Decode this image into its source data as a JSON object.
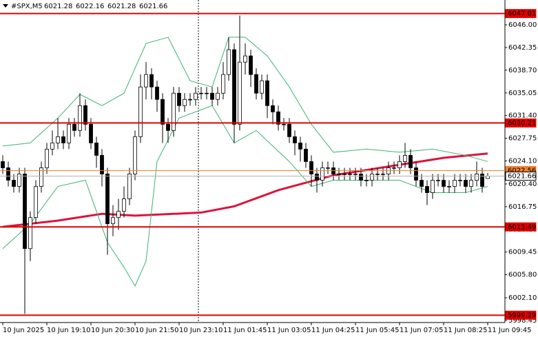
{
  "header": {
    "symbol": "#SPX,M5",
    "values": [
      6021.28,
      6022.16,
      6021.28,
      6021.66
    ]
  },
  "chart_data": {
    "type": "candlestick",
    "open": [
      6024,
      6023,
      6021,
      6020,
      6022,
      6010,
      6015,
      6020,
      6023,
      6026,
      6027,
      6028,
      6027,
      6030,
      6029,
      6033,
      6030,
      6027,
      6025,
      6022,
      6014,
      6015,
      6016,
      6018,
      6022,
      6028,
      6036,
      6038,
      6036,
      6034,
      6030,
      6029,
      6035,
      6033,
      6034,
      6034,
      6035,
      6035,
      6035,
      6034,
      6035,
      6038,
      6042,
      6030,
      6040,
      6041,
      6038,
      6035,
      6037,
      6033,
      6032,
      6030,
      6030,
      6028,
      6027,
      6026,
      6024,
      6022,
      6021,
      6023,
      6023,
      6022,
      6022,
      6022,
      6022,
      6022,
      6021,
      6021,
      6022,
      6022,
      6022,
      6023,
      6023,
      6024,
      6025,
      6023,
      6021,
      6020,
      6019,
      6021,
      6021,
      6020,
      6020,
      6021,
      6021,
      6020,
      6021,
      6022,
      6021.28
    ],
    "high": [
      6025,
      6024,
      6022,
      6023,
      6023,
      6016,
      6021,
      6024,
      6027,
      6029,
      6031,
      6029,
      6031,
      6031,
      6035,
      6034,
      6031,
      6028,
      6026,
      6023,
      6017,
      6018,
      6020,
      6023,
      6029,
      6038,
      6040,
      6039,
      6037,
      6035,
      6031,
      6036,
      6036,
      6035,
      6035,
      6036,
      6036,
      6036,
      6036,
      6036,
      6040,
      6044,
      6043,
      6047.5,
      6043,
      6042,
      6039,
      6038,
      6038,
      6034,
      6033,
      6031,
      6031,
      6029,
      6028,
      6027,
      6025,
      6023,
      6024,
      6024,
      6024,
      6023,
      6023,
      6023,
      6023,
      6023,
      6022,
      6023,
      6023,
      6023,
      6024,
      6024,
      6025,
      6027,
      6026,
      6024,
      6022,
      6021,
      6022,
      6022,
      6022,
      6021,
      6022,
      6022,
      6022,
      6022,
      6024,
      6023,
      6022.16
    ],
    "low": [
      6022,
      6020,
      6019,
      6019,
      5999.5,
      6008,
      6014,
      6019,
      6022,
      6025,
      6026,
      6026,
      6026,
      6028,
      6028,
      6029,
      6026,
      6023,
      6020,
      6009,
      6012,
      6013,
      6015,
      6017,
      6021,
      6027,
      6034,
      6034,
      6032,
      6027,
      6027,
      6028,
      6032,
      6032,
      6033,
      6033,
      6034,
      6034,
      6033,
      6033,
      6034,
      6037,
      6027,
      6029,
      6038,
      6036,
      6034,
      6034,
      6031,
      6030,
      6029,
      6029,
      6027,
      6025,
      6024,
      6023,
      6020,
      6019,
      6020,
      6022,
      6021,
      6021,
      6021,
      6021,
      6021,
      6020,
      6020,
      6020,
      6021,
      6021,
      6021,
      6022,
      6022,
      6023,
      6022,
      6020,
      6019,
      6017,
      6018,
      6020,
      6019,
      6019,
      6019,
      6020,
      6019,
      6019,
      6020,
      6019,
      6021.28
    ],
    "close": [
      6023,
      6021,
      6020,
      6022,
      6010,
      6015,
      6020,
      6023,
      6026,
      6027,
      6028,
      6027,
      6030,
      6029,
      6033,
      6030,
      6027,
      6025,
      6022,
      6014,
      6015,
      6016,
      6018,
      6022,
      6028,
      6036,
      6038,
      6036,
      6034,
      6030,
      6029,
      6035,
      6033,
      6034,
      6034,
      6035,
      6035,
      6035,
      6034,
      6035,
      6038,
      6042,
      6030,
      6040,
      6041,
      6038,
      6035,
      6037,
      6033,
      6032,
      6030,
      6030,
      6028,
      6027,
      6026,
      6024,
      6022,
      6021,
      6023,
      6023,
      6022,
      6022,
      6022,
      6022,
      6022,
      6021,
      6021,
      6022,
      6022,
      6022,
      6023,
      6023,
      6024,
      6025,
      6023,
      6021,
      6020,
      6019,
      6021,
      6021,
      6020,
      6020,
      6021,
      6021,
      6020,
      6021,
      6022,
      6020,
      6021.66
    ],
    "series": [
      {
        "color": "#dc143c",
        "width": 3,
        "x": [
          0,
          10,
          18,
          24,
          36,
          42,
          50,
          60,
          70,
          80,
          88
        ],
        "values": [
          6013.5,
          6014.5,
          6015.6,
          6015.3,
          6015.8,
          6016.8,
          6019.4,
          6021.8,
          6023.2,
          6024.6,
          6025.3
        ]
      },
      {
        "color": "#3cb371",
        "width": 1,
        "x": [
          0,
          5,
          10,
          14,
          18,
          22,
          26,
          30,
          34,
          38,
          41,
          44,
          48,
          52,
          56,
          60,
          66,
          72,
          78,
          84,
          88
        ],
        "values": [
          6026.5,
          6027,
          6031,
          6034.8,
          6033,
          6035,
          6043,
          6044,
          6037,
          6036,
          6044,
          6044,
          6041,
          6036,
          6030,
          6025.5,
          6026,
          6025.5,
          6026,
          6025,
          6024
        ]
      },
      {
        "color": "#3cb371",
        "width": 1,
        "x": [
          0,
          5,
          10,
          15,
          19,
          22,
          24,
          26,
          28,
          32,
          38,
          42,
          46,
          52,
          56,
          60,
          66,
          72,
          78,
          84,
          88
        ],
        "values": [
          6010,
          6014,
          6020,
          6021,
          6011,
          6007,
          6004,
          6008,
          6024,
          6031,
          6033,
          6027,
          6029,
          6024,
          6020,
          6021,
          6021,
          6021,
          6019,
          6019,
          6020
        ]
      }
    ],
    "levels": [
      {
        "value": 6047.81,
        "color": "#e00000"
      },
      {
        "value": 6030.21,
        "color": "#e00000"
      },
      {
        "value": 6022.56,
        "color": "#f08030"
      },
      {
        "value": 6021.66,
        "color": "#b0b0b0"
      },
      {
        "value": 6013.49,
        "color": "#e00000"
      },
      {
        "value": 5999.29,
        "color": "#e00000"
      }
    ],
    "ylim": [
      5998.11,
      6049.99
    ],
    "yticks": [
      {
        "value": 6046,
        "label": "6046.00"
      },
      6042.35,
      {
        "value": 6038.7,
        "label": "6038.70"
      },
      6035.05,
      {
        "value": 6031.4,
        "label": "6031.40"
      },
      6027.75,
      {
        "value": 6024.1,
        "label": "6024.10"
      },
      {
        "value": 6020.4,
        "label": "6020.40"
      },
      6016.75,
      {
        "value": 6013.1,
        "label": "6013.10"
      },
      6009.45,
      {
        "value": 6005.8,
        "label": "6005.80"
      },
      {
        "value": 6002.1,
        "label": "6002.10"
      },
      5998.45
    ],
    "xticks": [
      {
        "value": 0,
        "label": "10 Jun 2025"
      },
      {
        "value": 8,
        "label": "10 Jun 19:10"
      },
      {
        "value": 16,
        "label": "10 Jun 20:30"
      },
      {
        "value": 24,
        "label": "10 Jun 21:50"
      },
      {
        "value": 32,
        "label": "10 Jun 23:10"
      },
      {
        "value": 40,
        "label": "11 Jun 01:45"
      },
      {
        "value": 48,
        "label": "11 Jun 03:05"
      },
      {
        "value": 56,
        "label": "11 Jun 04:25"
      },
      {
        "value": 64,
        "label": "11 Jun 05:45"
      },
      {
        "value": 72,
        "label": "11 Jun 07:05"
      },
      {
        "value": 80,
        "label": "11 Jun 08:25"
      },
      {
        "value": 88,
        "label": "11 Jun 09:45"
      }
    ]
  }
}
